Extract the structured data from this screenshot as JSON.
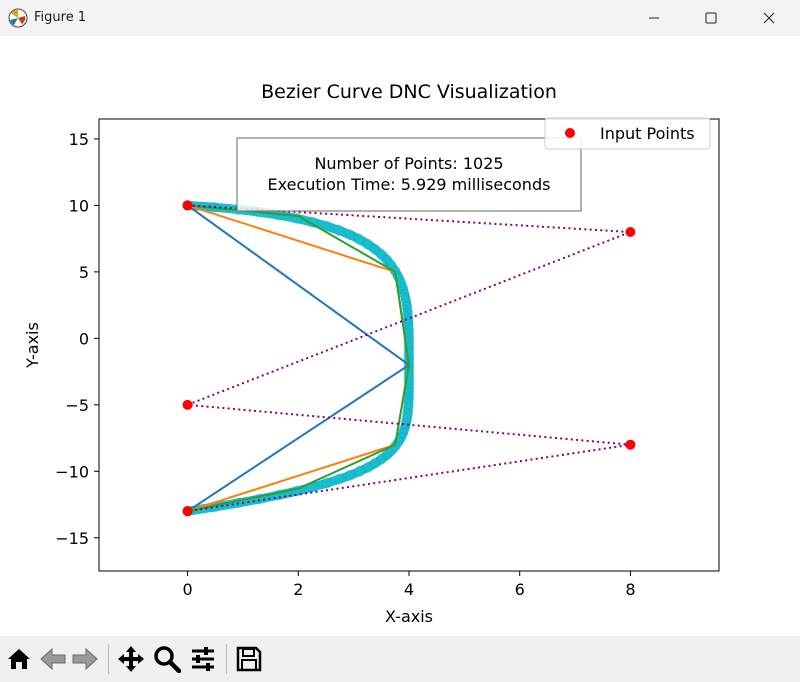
{
  "window": {
    "title": "Figure 1",
    "icon": "matplotlib-figure-icon",
    "controls": [
      "minimize-icon",
      "maximize-icon",
      "close-icon"
    ]
  },
  "toolbar": {
    "tools": [
      "home-icon",
      "back-arrow-icon",
      "forward-arrow-icon",
      "pan-icon",
      "zoom-icon",
      "configure-subplots-icon",
      "save-icon"
    ]
  },
  "chart_data": {
    "type": "line",
    "title": "Bezier Curve DNC Visualization",
    "xlabel": "X-axis",
    "ylabel": "Y-axis",
    "xlim": [
      -1.6,
      9.6
    ],
    "ylim": [
      -17.5,
      16.5
    ],
    "xticks": [
      0,
      2,
      4,
      6,
      8
    ],
    "yticks": [
      15,
      10,
      5,
      0,
      -5,
      -10,
      -15
    ],
    "grid": false,
    "legend": {
      "location": "top-right",
      "entries": [
        "Input Points"
      ]
    },
    "annotation": {
      "lines": [
        "Number of Points: 1025",
        "Execution Time: 5.929 milliseconds"
      ]
    },
    "input_points": {
      "name": "Input Points",
      "color": "#ff0000",
      "x": [
        0,
        8,
        0,
        8,
        0
      ],
      "y": [
        10,
        8,
        -5,
        -8,
        -13
      ]
    },
    "control_polygon": {
      "color": "#800080",
      "style": "dotted"
    },
    "iterations": [
      {
        "color": "#1f77b4",
        "x": [
          0,
          4,
          0
        ],
        "y": [
          10,
          -2,
          -13
        ]
      },
      {
        "color": "#ff7f0e",
        "x": [
          0,
          3.75,
          4,
          3.75,
          0
        ],
        "y": [
          10,
          5,
          -2,
          -8,
          -13
        ]
      },
      {
        "color": "#2ca02c",
        "x": [
          0,
          2.0,
          3.75,
          4,
          3.75,
          2.0,
          0
        ],
        "y": [
          10,
          9.2,
          5,
          -2,
          -8,
          -11.3,
          -13
        ]
      }
    ],
    "final_curve": {
      "color": "#17becf",
      "points": 1025
    },
    "colors": {
      "input_points": "#ff0000",
      "control_polygon": "#800080",
      "iter1": "#1f77b4",
      "iter2": "#ff7f0e",
      "iter3": "#2ca02c",
      "final": "#17becf"
    }
  }
}
